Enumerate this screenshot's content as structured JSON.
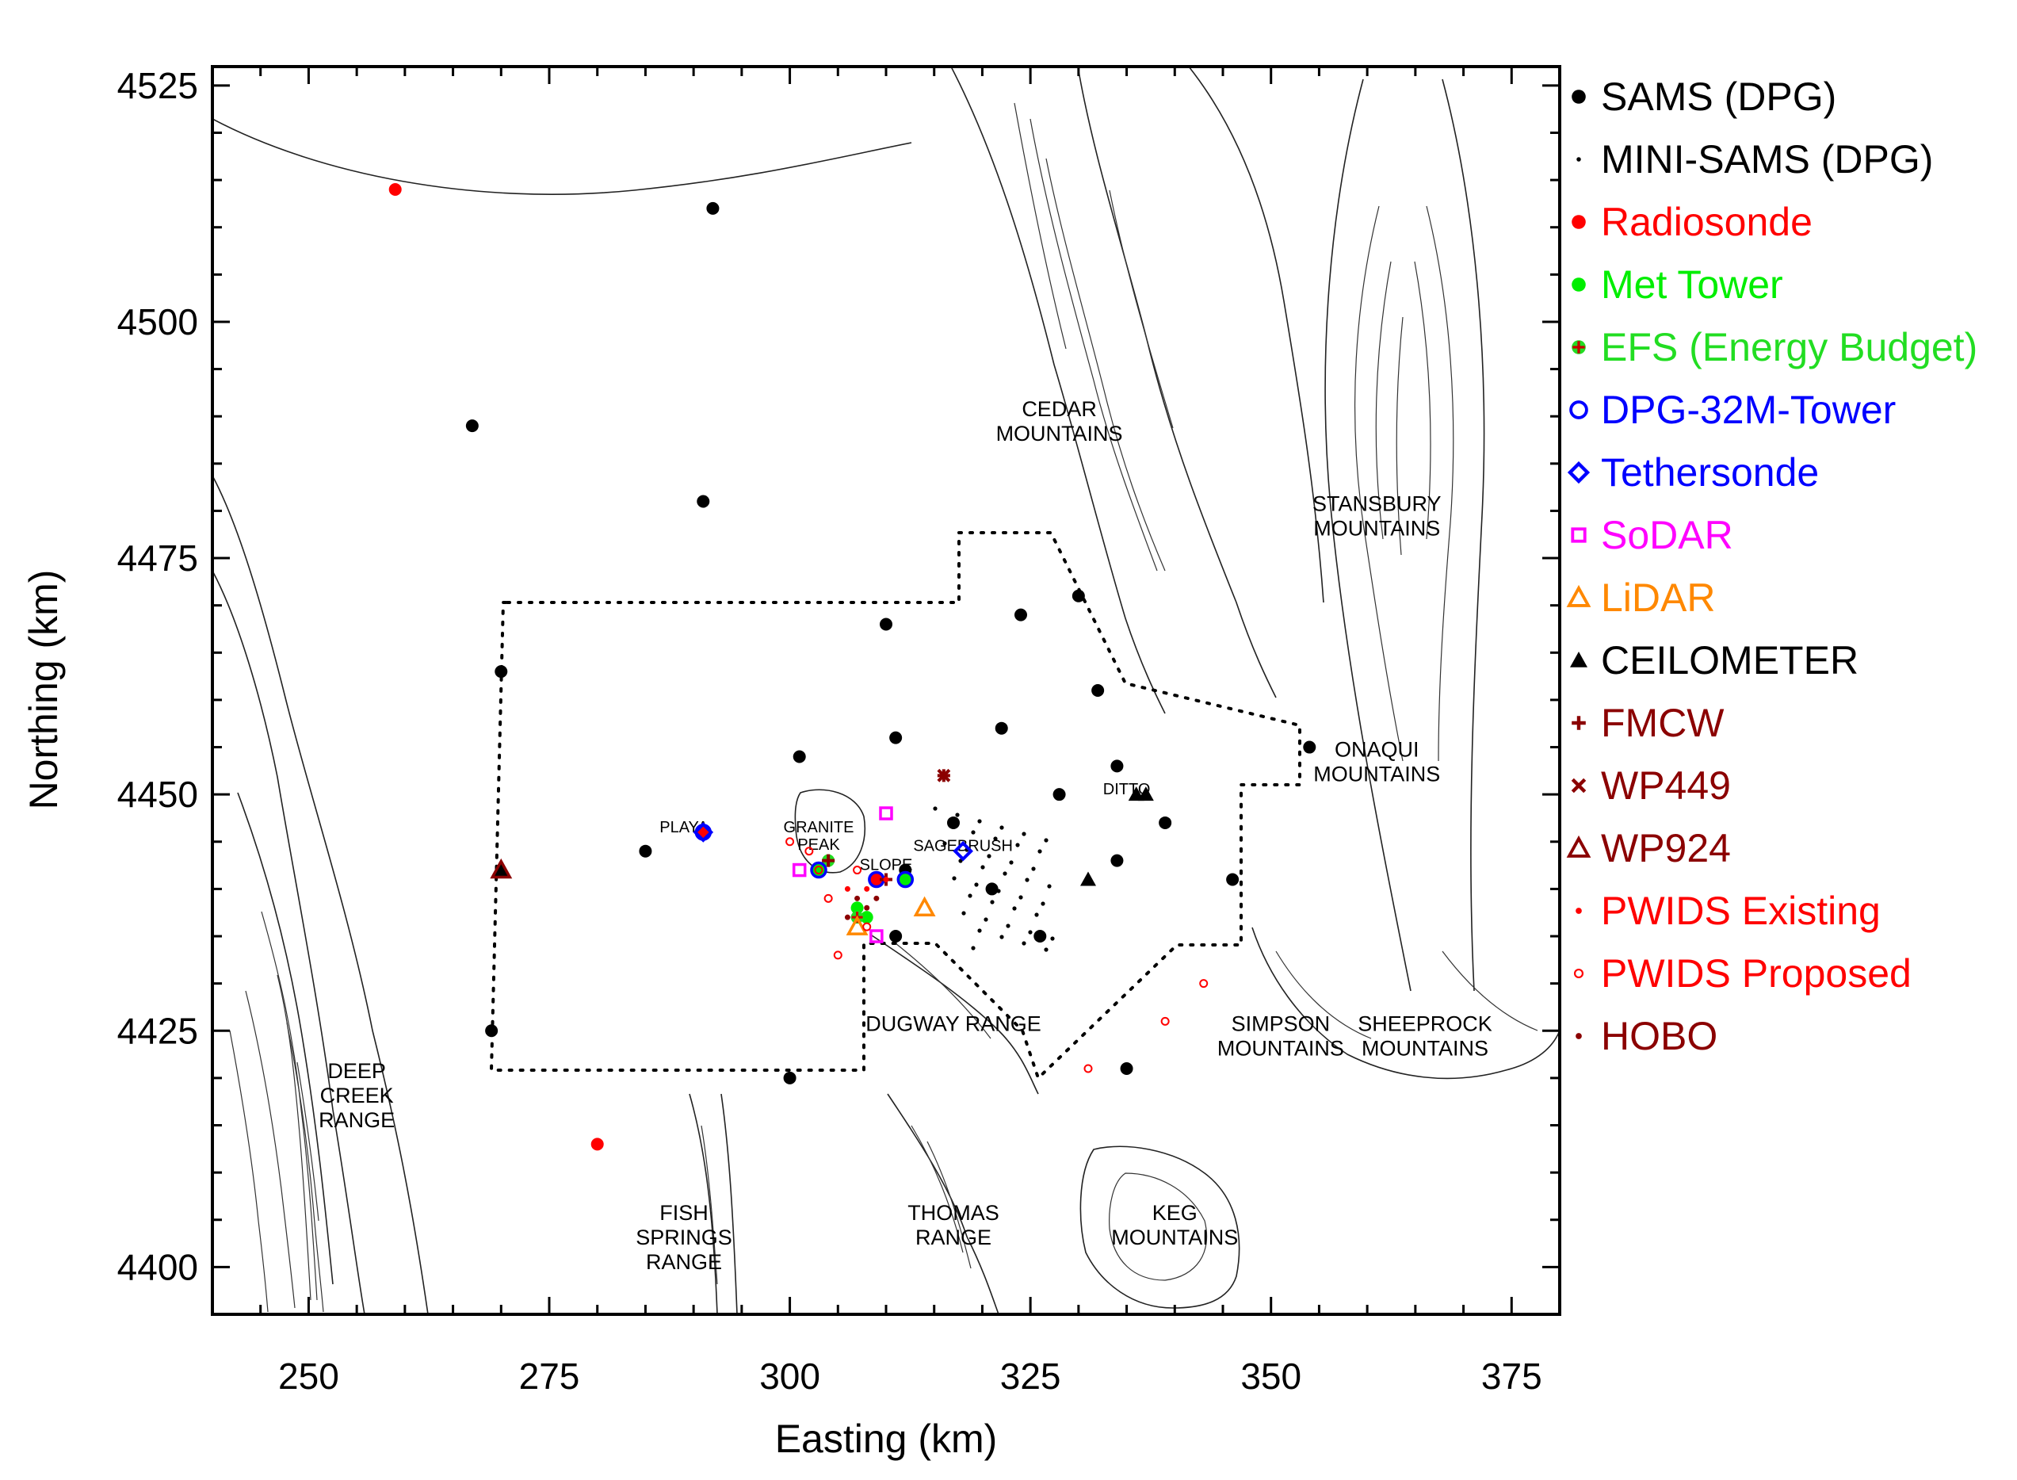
{
  "chart_data": {
    "type": "map",
    "xlabel": "Easting (km)",
    "ylabel": "Northing (km)",
    "xlim": [
      240,
      380
    ],
    "ylim": [
      4395,
      4527
    ],
    "x_ticks": [
      "250",
      "275",
      "300",
      "325",
      "350",
      "375"
    ],
    "y_ticks": [
      "4400",
      "4425",
      "4450",
      "4475",
      "4500",
      "4525"
    ],
    "x_tick_values": [
      250,
      275,
      300,
      325,
      350,
      375
    ],
    "y_tick_values": [
      4400,
      4425,
      4450,
      4475,
      4500,
      4525
    ],
    "legend": [
      {
        "label": "SAMS (DPG)",
        "marker": "filled-circle",
        "color": "#000000"
      },
      {
        "label": "MINI-SAMS (DPG)",
        "marker": "dot",
        "color": "#000000"
      },
      {
        "label": "Radiosonde",
        "marker": "filled-circle",
        "color": "#ff0000"
      },
      {
        "label": "Met Tower",
        "marker": "filled-circle",
        "color": "#00ee00"
      },
      {
        "label": "EFS (Energy Budget)",
        "marker": "plus-circle",
        "color": "#22dd22"
      },
      {
        "label": "DPG-32M-Tower",
        "marker": "open-circle",
        "color": "#0000ff"
      },
      {
        "label": "Tethersonde",
        "marker": "diamond",
        "color": "#0000ff"
      },
      {
        "label": "SoDAR",
        "marker": "square",
        "color": "#ff00ff"
      },
      {
        "label": "LiDAR",
        "marker": "triangle",
        "color": "#ff8800"
      },
      {
        "label": "CEILOMETER",
        "marker": "filled-triangle",
        "color": "#000000"
      },
      {
        "label": "FMCW",
        "marker": "plus",
        "color": "#8b0000"
      },
      {
        "label": "WP449",
        "marker": "x",
        "color": "#8b0000"
      },
      {
        "label": "WP924",
        "marker": "triangle",
        "color": "#8b0000"
      },
      {
        "label": "PWIDS Existing",
        "marker": "small-dot",
        "color": "#ff0000"
      },
      {
        "label": "PWIDS Proposed",
        "marker": "small-open-circle",
        "color": "#ff0000"
      },
      {
        "label": "HOBO",
        "marker": "small-dot",
        "color": "#8b0000"
      }
    ],
    "region_labels": [
      {
        "lines": [
          "CEDAR",
          "MOUNTAINS"
        ],
        "x": 328,
        "y": 4490
      },
      {
        "lines": [
          "STANSBURY",
          "MOUNTAINS"
        ],
        "x": 361,
        "y": 4480
      },
      {
        "lines": [
          "ONAQUI",
          "MOUNTAINS"
        ],
        "x": 361,
        "y": 4454
      },
      {
        "lines": [
          "DITTO"
        ],
        "x": 335,
        "y": 4450
      },
      {
        "lines": [
          "SIMPSON",
          "MOUNTAINS"
        ],
        "x": 351,
        "y": 4425
      },
      {
        "lines": [
          "SHEEPROCK",
          "MOUNTAINS"
        ],
        "x": 366,
        "y": 4425
      },
      {
        "lines": [
          "DUGWAY RANGE"
        ],
        "x": 317,
        "y": 4425
      },
      {
        "lines": [
          "DEEP",
          "CREEK",
          "RANGE"
        ],
        "x": 255,
        "y": 4420
      },
      {
        "lines": [
          "FISH",
          "SPRINGS",
          "RANGE"
        ],
        "x": 289,
        "y": 4405
      },
      {
        "lines": [
          "THOMAS",
          "RANGE"
        ],
        "x": 317,
        "y": 4405
      },
      {
        "lines": [
          "KEG",
          "MOUNTAINS"
        ],
        "x": 340,
        "y": 4405
      },
      {
        "lines": [
          "PLAYA"
        ],
        "x": 289,
        "y": 4446
      },
      {
        "lines": [
          "GRANITE",
          "PEAK"
        ],
        "x": 303,
        "y": 4446
      },
      {
        "lines": [
          "SLOPE"
        ],
        "x": 310,
        "y": 4442
      },
      {
        "lines": [
          "SAGEBRUSH"
        ],
        "x": 318,
        "y": 4444
      }
    ],
    "series": [
      {
        "name": "SAMS (DPG)",
        "points": [
          [
            292,
            4512
          ],
          [
            267,
            4489
          ],
          [
            291,
            4481
          ],
          [
            310,
            4468
          ],
          [
            324,
            4469
          ],
          [
            330,
            4471
          ],
          [
            270,
            4463
          ],
          [
            332,
            4461
          ],
          [
            301,
            4454
          ],
          [
            311,
            4456
          ],
          [
            322,
            4457
          ],
          [
            334,
            4453
          ],
          [
            354,
            4455
          ],
          [
            317,
            4447
          ],
          [
            328,
            4450
          ],
          [
            339,
            4447
          ],
          [
            285,
            4444
          ],
          [
            312,
            4442
          ],
          [
            334,
            4443
          ],
          [
            321,
            4440
          ],
          [
            346,
            4441
          ],
          [
            311,
            4435
          ],
          [
            326,
            4435
          ],
          [
            269,
            4425
          ],
          [
            300,
            4420
          ],
          [
            335,
            4421
          ]
        ]
      },
      {
        "name": "Radiosonde",
        "points": [
          [
            259,
            4514
          ],
          [
            280,
            4413
          ],
          [
            291,
            4446
          ],
          [
            309,
            4441
          ]
        ]
      },
      {
        "name": "Met Tower",
        "points": [
          [
            303,
            4442
          ],
          [
            308,
            4437
          ],
          [
            307,
            4438
          ],
          [
            312,
            4441
          ]
        ]
      },
      {
        "name": "EFS (Energy Budget)",
        "points": [
          [
            304,
            4443
          ],
          [
            307,
            4437
          ]
        ]
      },
      {
        "name": "DPG-32M-Tower",
        "points": [
          [
            291,
            4446
          ],
          [
            303,
            4442
          ],
          [
            309,
            4441
          ],
          [
            312,
            4441
          ]
        ]
      },
      {
        "name": "Tethersonde",
        "points": [
          [
            291,
            4446
          ],
          [
            318,
            4444
          ]
        ]
      },
      {
        "name": "SoDAR",
        "points": [
          [
            310,
            4448
          ],
          [
            301,
            4442
          ],
          [
            309,
            4435
          ]
        ]
      },
      {
        "name": "LiDAR",
        "points": [
          [
            314,
            4438
          ],
          [
            307,
            4436
          ]
        ]
      },
      {
        "name": "CEILOMETER",
        "points": [
          [
            270,
            4442
          ],
          [
            331,
            4441
          ],
          [
            337,
            4450
          ],
          [
            336,
            4450
          ]
        ]
      },
      {
        "name": "FMCW",
        "points": [
          [
            316,
            4452
          ],
          [
            304,
            4443
          ],
          [
            310,
            4441
          ]
        ]
      },
      {
        "name": "WP449",
        "points": [
          [
            316,
            4452
          ]
        ]
      },
      {
        "name": "WP924",
        "points": [
          [
            270,
            4442
          ]
        ]
      },
      {
        "name": "PWIDS Existing",
        "points": [
          [
            308,
            4440
          ],
          [
            309,
            4441
          ],
          [
            310,
            4441
          ],
          [
            306,
            4440
          ]
        ]
      },
      {
        "name": "PWIDS Proposed",
        "points": [
          [
            300,
            4445
          ],
          [
            303,
            4442
          ],
          [
            304,
            4439
          ],
          [
            305,
            4433
          ],
          [
            302,
            4444
          ],
          [
            343,
            4430
          ],
          [
            339,
            4426
          ],
          [
            331,
            4421
          ],
          [
            308,
            4436
          ],
          [
            307,
            4442
          ]
        ]
      },
      {
        "name": "HOBO",
        "points": [
          [
            307,
            4439
          ],
          [
            308,
            4438
          ],
          [
            306,
            4437
          ],
          [
            309,
            4439
          ]
        ]
      }
    ],
    "grid": false,
    "legend_placement": "right"
  }
}
